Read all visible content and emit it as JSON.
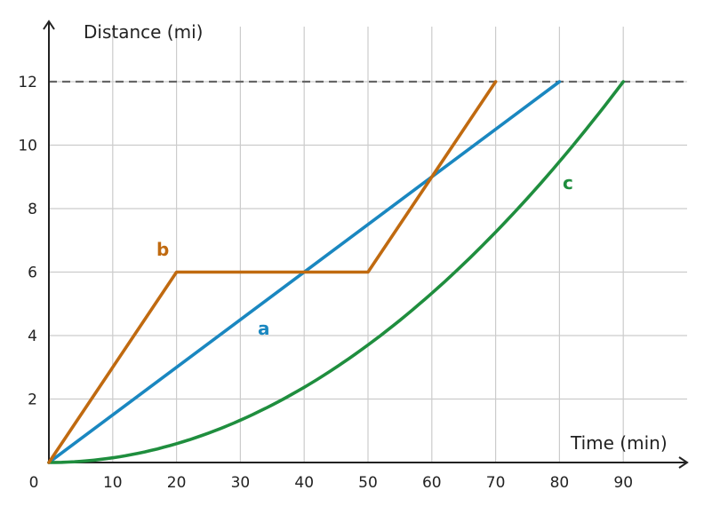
{
  "chart_data": {
    "type": "line",
    "xlabel": "Time (min)",
    "ylabel": "Distance (mi)",
    "xlim": [
      0,
      100
    ],
    "ylim": [
      0,
      13
    ],
    "x_ticks": [
      "0",
      "10",
      "20",
      "30",
      "40",
      "50",
      "60",
      "70",
      "80",
      "90"
    ],
    "y_ticks": [
      "2",
      "4",
      "6",
      "8",
      "10",
      "12"
    ],
    "grid": true,
    "reference_line": {
      "y": 12,
      "style": "dashed",
      "color": "#666666"
    },
    "series": [
      {
        "name": "a",
        "color": "#1a87c0",
        "x": [
          0,
          80
        ],
        "y": [
          0,
          12
        ]
      },
      {
        "name": "b",
        "color": "#c06a10",
        "x": [
          0,
          20,
          50,
          70
        ],
        "y": [
          0,
          6,
          6,
          12
        ]
      },
      {
        "name": "c",
        "color": "#1f8e3e",
        "x": [
          0,
          10,
          20,
          30,
          40,
          50,
          60,
          70,
          80,
          90
        ],
        "y": [
          0,
          0.15,
          0.59,
          1.33,
          2.37,
          3.7,
          5.33,
          7.26,
          9.48,
          12
        ]
      }
    ]
  }
}
